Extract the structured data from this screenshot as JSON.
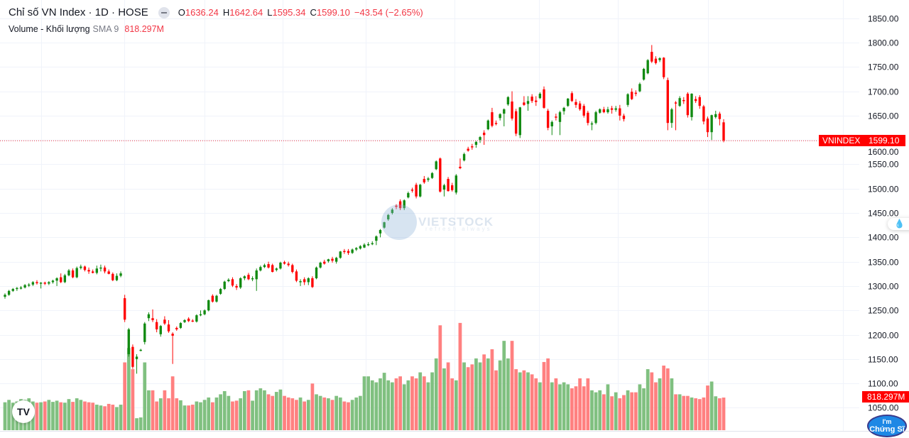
{
  "header": {
    "title": "Chỉ số VN Index · 1D · HOSE",
    "ohlc": {
      "o_label": "O",
      "o": "1636.24",
      "h_label": "H",
      "h": "1642.64",
      "l_label": "L",
      "l": "1595.34",
      "c_label": "C",
      "c": "1599.10",
      "change": "−43.54 (−2.65%)"
    },
    "volume_label": "Volume - Khối lượng",
    "sma_label": "SMA 9",
    "volume_value": "818.297M"
  },
  "price_tag": {
    "symbol": "VNINDEX",
    "value": "1599.10"
  },
  "volume_tag": "818.297M",
  "watermark": {
    "brand": "VIETSTOCK",
    "tagline": "refresh always"
  },
  "tv_logo": "TV",
  "badge": {
    "line1": "I'm",
    "line2": "Chứng Sĩ"
  },
  "colors": {
    "up": "#089981",
    "up_candle": "#118a11",
    "down": "#f23645",
    "down_candle": "#ff0000",
    "vol_up": "#80c080",
    "vol_down": "#ff8080",
    "grid": "#f0f3fa"
  },
  "chart_data": {
    "type": "candlestick",
    "title": "Chỉ số VN Index · 1D · HOSE",
    "y_axis": {
      "ticks": [
        1850,
        1800,
        1750,
        1700,
        1650,
        1600,
        1550,
        1500,
        1450,
        1400,
        1350,
        1300,
        1250,
        1200,
        1150,
        1100,
        1050
      ],
      "tick_labels": [
        "1850.00",
        "1800.00",
        "1750.00",
        "1700.00",
        "1650.00",
        "1600.00",
        "1550.00",
        "1500.00",
        "1450.00",
        "1400.00",
        "1350.00",
        "1300.00",
        "1250.00",
        "1200.00",
        "1150.00",
        "1100.00",
        "1050.00"
      ],
      "range": [
        1035,
        1860
      ]
    },
    "last_price": 1599.1,
    "volume_unit": "M",
    "candles_fields": [
      "open",
      "high",
      "low",
      "close",
      "volume"
    ],
    "candles": [
      [
        1278,
        1285,
        1274,
        1282,
        700
      ],
      [
        1282,
        1292,
        1280,
        1290,
        760
      ],
      [
        1290,
        1296,
        1288,
        1294,
        690
      ],
      [
        1294,
        1298,
        1290,
        1296,
        720
      ],
      [
        1296,
        1300,
        1293,
        1297,
        780
      ],
      [
        1297,
        1304,
        1295,
        1302,
        760
      ],
      [
        1302,
        1306,
        1298,
        1303,
        800
      ],
      [
        1303,
        1310,
        1300,
        1308,
        720
      ],
      [
        1308,
        1312,
        1303,
        1306,
        690
      ],
      [
        1306,
        1308,
        1295,
        1307,
        700
      ],
      [
        1307,
        1309,
        1302,
        1305,
        720
      ],
      [
        1305,
        1310,
        1302,
        1308,
        760
      ],
      [
        1308,
        1313,
        1305,
        1311,
        710
      ],
      [
        1311,
        1318,
        1300,
        1316,
        740
      ],
      [
        1318,
        1326,
        1306,
        1308,
        700
      ],
      [
        1308,
        1325,
        1306,
        1322,
        690
      ],
      [
        1322,
        1335,
        1320,
        1332,
        780
      ],
      [
        1332,
        1336,
        1316,
        1318,
        710
      ],
      [
        1318,
        1340,
        1316,
        1337,
        800
      ],
      [
        1337,
        1344,
        1334,
        1340,
        760
      ],
      [
        1340,
        1342,
        1330,
        1333,
        720
      ],
      [
        1333,
        1338,
        1325,
        1330,
        700
      ],
      [
        1330,
        1334,
        1326,
        1327,
        690
      ],
      [
        1327,
        1342,
        1324,
        1336,
        640
      ],
      [
        1336,
        1344,
        1330,
        1338,
        620
      ],
      [
        1338,
        1342,
        1326,
        1330,
        600
      ],
      [
        1330,
        1334,
        1324,
        1325,
        660
      ],
      [
        1325,
        1328,
        1310,
        1312,
        640
      ],
      [
        1312,
        1326,
        1310,
        1321,
        580
      ],
      [
        1321,
        1330,
        1318,
        1326,
        640
      ],
      [
        1275,
        1282,
        1226,
        1231,
        1700
      ],
      [
        1160,
        1214,
        1155,
        1211,
        2060
      ],
      [
        1175,
        1180,
        1130,
        1134,
        1530
      ],
      [
        1150,
        1160,
        1120,
        1155,
        300
      ],
      [
        1168,
        1171,
        1166,
        1169,
        320
      ],
      [
        1185,
        1226,
        1180,
        1223,
        1700
      ],
      [
        1234,
        1246,
        1228,
        1242,
        1000
      ],
      [
        1234,
        1252,
        1226,
        1230,
        1000
      ],
      [
        1226,
        1232,
        1205,
        1211,
        720
      ],
      [
        1201,
        1220,
        1196,
        1218,
        800
      ],
      [
        1231,
        1238,
        1220,
        1223,
        1000
      ],
      [
        1221,
        1230,
        1204,
        1207,
        800
      ],
      [
        1202,
        1205,
        1140,
        1198,
        1350
      ],
      [
        1214,
        1217,
        1208,
        1211,
        800
      ],
      [
        1214,
        1226,
        1212,
        1224,
        750
      ],
      [
        1226,
        1232,
        1224,
        1230,
        620
      ],
      [
        1233,
        1236,
        1226,
        1228,
        620
      ],
      [
        1229,
        1232,
        1226,
        1228,
        640
      ],
      [
        1227,
        1242,
        1225,
        1240,
        720
      ],
      [
        1241,
        1250,
        1238,
        1242,
        700
      ],
      [
        1242,
        1252,
        1240,
        1250,
        760
      ],
      [
        1250,
        1272,
        1248,
        1271,
        820
      ],
      [
        1280,
        1283,
        1266,
        1268,
        700
      ],
      [
        1268,
        1282,
        1266,
        1280,
        820
      ],
      [
        1284,
        1296,
        1282,
        1294,
        900
      ],
      [
        1294,
        1311,
        1292,
        1309,
        980
      ],
      [
        1310,
        1316,
        1308,
        1313,
        860
      ],
      [
        1314,
        1318,
        1298,
        1301,
        720
      ],
      [
        1300,
        1304,
        1292,
        1297,
        740
      ],
      [
        1297,
        1318,
        1294,
        1316,
        800
      ],
      [
        1316,
        1322,
        1312,
        1320,
        980
      ],
      [
        1323,
        1327,
        1312,
        1314,
        1000
      ],
      [
        1314,
        1320,
        1310,
        1316,
        740
      ],
      [
        1314,
        1336,
        1290,
        1332,
        1000
      ],
      [
        1332,
        1342,
        1330,
        1339,
        1050
      ],
      [
        1339,
        1346,
        1337,
        1343,
        1000
      ],
      [
        1345,
        1350,
        1336,
        1338,
        900
      ],
      [
        1343,
        1346,
        1328,
        1329,
        860
      ],
      [
        1333,
        1338,
        1330,
        1336,
        960
      ],
      [
        1336,
        1350,
        1334,
        1348,
        1020
      ],
      [
        1349,
        1352,
        1344,
        1346,
        860
      ],
      [
        1346,
        1350,
        1340,
        1343,
        820
      ],
      [
        1343,
        1346,
        1326,
        1329,
        800
      ],
      [
        1330,
        1334,
        1308,
        1311,
        760
      ],
      [
        1308,
        1314,
        1300,
        1310,
        820
      ],
      [
        1314,
        1318,
        1302,
        1308,
        720
      ],
      [
        1308,
        1318,
        1302,
        1316,
        760
      ],
      [
        1316,
        1320,
        1296,
        1298,
        1170
      ],
      [
        1316,
        1340,
        1314,
        1338,
        900
      ],
      [
        1338,
        1350,
        1336,
        1348,
        860
      ],
      [
        1350,
        1354,
        1344,
        1346,
        820
      ],
      [
        1351,
        1356,
        1348,
        1355,
        800
      ],
      [
        1356,
        1360,
        1348,
        1352,
        760
      ],
      [
        1350,
        1360,
        1346,
        1358,
        860
      ],
      [
        1358,
        1372,
        1356,
        1371,
        820
      ],
      [
        1372,
        1376,
        1366,
        1370,
        720
      ],
      [
        1372,
        1376,
        1364,
        1368,
        700
      ],
      [
        1368,
        1377,
        1366,
        1375,
        760
      ],
      [
        1375,
        1380,
        1372,
        1378,
        820
      ],
      [
        1377,
        1384,
        1375,
        1382,
        860
      ],
      [
        1379,
        1388,
        1378,
        1385,
        1350
      ],
      [
        1385,
        1390,
        1382,
        1386,
        1350
      ],
      [
        1386,
        1392,
        1384,
        1388,
        1250
      ],
      [
        1393,
        1404,
        1384,
        1402,
        1200
      ],
      [
        1408,
        1417,
        1400,
        1415,
        1300
      ],
      [
        1420,
        1432,
        1418,
        1431,
        1440
      ],
      [
        1437,
        1448,
        1434,
        1446,
        1250
      ],
      [
        1450,
        1460,
        1447,
        1457,
        1200
      ],
      [
        1465,
        1468,
        1458,
        1463,
        1300
      ],
      [
        1474,
        1478,
        1456,
        1460,
        1350
      ],
      [
        1460,
        1478,
        1456,
        1476,
        1150
      ],
      [
        1482,
        1494,
        1480,
        1491,
        1250
      ],
      [
        1498,
        1502,
        1492,
        1497,
        1350
      ],
      [
        1508,
        1512,
        1480,
        1484,
        1300
      ],
      [
        1484,
        1510,
        1482,
        1508,
        1450
      ],
      [
        1520,
        1526,
        1510,
        1513,
        1350
      ],
      [
        1518,
        1524,
        1514,
        1521,
        1200
      ],
      [
        1522,
        1534,
        1520,
        1532,
        1450
      ],
      [
        1540,
        1558,
        1538,
        1556,
        1800
      ],
      [
        1562,
        1564,
        1492,
        1494,
        2630
      ],
      [
        1498,
        1510,
        1484,
        1507,
        1550
      ],
      [
        1520,
        1524,
        1494,
        1495,
        1700
      ],
      [
        1507,
        1512,
        1494,
        1497,
        1300
      ],
      [
        1492,
        1530,
        1488,
        1527,
        1250
      ],
      [
        1545,
        1562,
        1540,
        1542,
        2690
      ],
      [
        1558,
        1574,
        1556,
        1571,
        1700
      ],
      [
        1582,
        1586,
        1576,
        1578,
        1580
      ],
      [
        1587,
        1592,
        1580,
        1585,
        1650
      ],
      [
        1590,
        1598,
        1584,
        1596,
        1800
      ],
      [
        1600,
        1608,
        1594,
        1606,
        1700
      ],
      [
        1615,
        1620,
        1590,
        1610,
        1900
      ],
      [
        1622,
        1642,
        1620,
        1640,
        1800
      ],
      [
        1657,
        1666,
        1626,
        1629,
        2030
      ],
      [
        1635,
        1640,
        1630,
        1634,
        1500
      ],
      [
        1645,
        1655,
        1640,
        1653,
        1750
      ],
      [
        1654,
        1665,
        1628,
        1663,
        2240
      ],
      [
        1673,
        1690,
        1670,
        1688,
        1800
      ],
      [
        1679,
        1700,
        1640,
        1644,
        2240
      ],
      [
        1659,
        1664,
        1608,
        1613,
        1530
      ],
      [
        1610,
        1668,
        1604,
        1667,
        1450
      ],
      [
        1677,
        1690,
        1670,
        1672,
        1500
      ],
      [
        1674,
        1690,
        1660,
        1680,
        1450
      ],
      [
        1689,
        1694,
        1676,
        1680,
        1400
      ],
      [
        1681,
        1690,
        1670,
        1678,
        1300
      ],
      [
        1686,
        1698,
        1684,
        1695,
        1200
      ],
      [
        1704,
        1710,
        1664,
        1666,
        1710
      ],
      [
        1660,
        1664,
        1620,
        1625,
        1800
      ],
      [
        1628,
        1640,
        1610,
        1637,
        1200
      ],
      [
        1648,
        1654,
        1640,
        1646,
        1300
      ],
      [
        1637,
        1660,
        1610,
        1657,
        1150
      ],
      [
        1659,
        1668,
        1652,
        1666,
        1200
      ],
      [
        1670,
        1686,
        1668,
        1685,
        1150
      ],
      [
        1696,
        1700,
        1678,
        1680,
        1050
      ],
      [
        1678,
        1684,
        1666,
        1672,
        1100
      ],
      [
        1675,
        1680,
        1660,
        1663,
        1300
      ],
      [
        1670,
        1674,
        1646,
        1650,
        1100
      ],
      [
        1656,
        1660,
        1630,
        1635,
        1300
      ],
      [
        1632,
        1638,
        1620,
        1634,
        1000
      ],
      [
        1635,
        1660,
        1632,
        1657,
        950
      ],
      [
        1656,
        1665,
        1654,
        1663,
        1000
      ],
      [
        1663,
        1668,
        1655,
        1657,
        900
      ],
      [
        1657,
        1668,
        1654,
        1663,
        1150
      ],
      [
        1665,
        1670,
        1654,
        1662,
        850
      ],
      [
        1662,
        1670,
        1658,
        1665,
        950
      ],
      [
        1665,
        1672,
        1640,
        1650,
        800
      ],
      [
        1650,
        1654,
        1638,
        1643,
        880
      ],
      [
        1672,
        1696,
        1668,
        1694,
        1000
      ],
      [
        1699,
        1706,
        1682,
        1684,
        950
      ],
      [
        1697,
        1702,
        1690,
        1696,
        950
      ],
      [
        1700,
        1718,
        1698,
        1715,
        1150
      ],
      [
        1724,
        1748,
        1722,
        1746,
        1050
      ],
      [
        1737,
        1766,
        1735,
        1764,
        1530
      ],
      [
        1781,
        1795,
        1758,
        1761,
        1450
      ],
      [
        1767,
        1772,
        1755,
        1758,
        1200
      ],
      [
        1764,
        1770,
        1760,
        1768,
        1300
      ],
      [
        1769,
        1770,
        1725,
        1729,
        1620
      ],
      [
        1723,
        1728,
        1620,
        1635,
        1550
      ],
      [
        1635,
        1666,
        1625,
        1663,
        1300
      ],
      [
        1677,
        1680,
        1620,
        1676,
        900
      ],
      [
        1670,
        1690,
        1668,
        1686,
        900
      ],
      [
        1682,
        1688,
        1674,
        1680,
        860
      ],
      [
        1695,
        1698,
        1646,
        1651,
        860
      ],
      [
        1647,
        1696,
        1640,
        1695,
        820
      ],
      [
        1684,
        1690,
        1676,
        1680,
        800
      ],
      [
        1688,
        1692,
        1664,
        1670,
        780
      ],
      [
        1669,
        1672,
        1632,
        1638,
        820
      ],
      [
        1644,
        1648,
        1606,
        1616,
        1120
      ],
      [
        1616,
        1652,
        1600,
        1651,
        1220
      ],
      [
        1647,
        1660,
        1644,
        1653,
        850
      ],
      [
        1654,
        1658,
        1630,
        1643,
        800
      ],
      [
        1636.24,
        1642.64,
        1595.34,
        1599.1,
        818.297
      ]
    ]
  }
}
